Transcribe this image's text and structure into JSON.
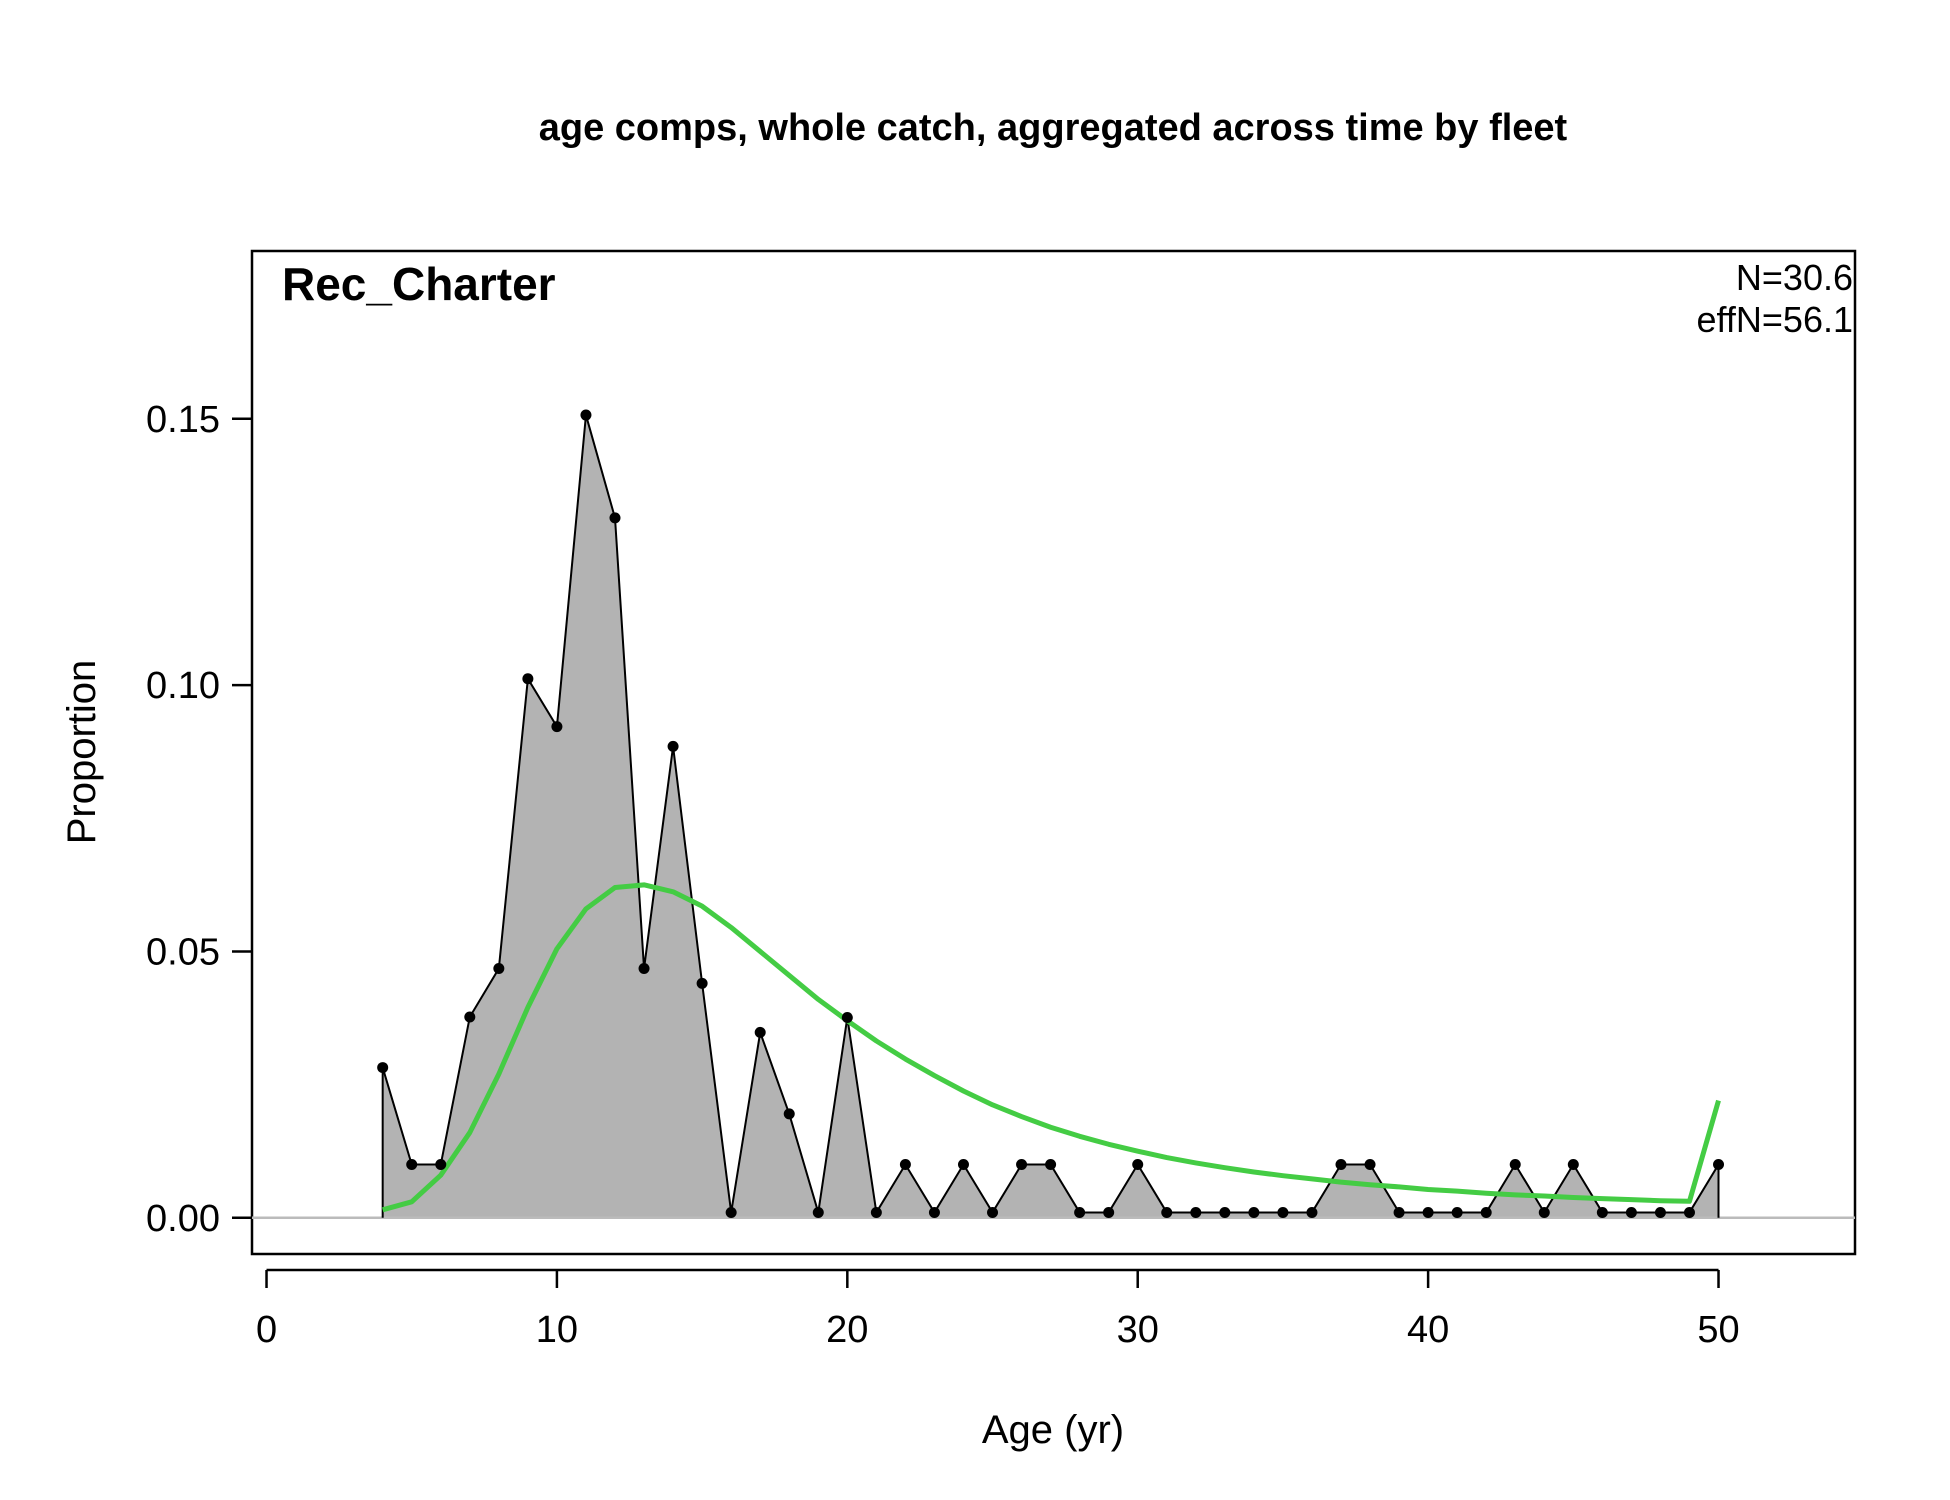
{
  "chart_data": {
    "type": "area",
    "title": "age comps, whole catch, aggregated across time by fleet",
    "xlabel": "Age (yr)",
    "ylabel": "Proportion",
    "fleet": "Rec_Charter",
    "n_label": "N=30.6",
    "effn_label": "effN=56.1",
    "xlim": [
      -0.5,
      54.7
    ],
    "ylim": [
      -0.0068,
      0.1815
    ],
    "x_ticks": [
      0,
      10,
      20,
      30,
      40,
      50
    ],
    "x_tick_labels": [
      "0",
      "10",
      "20",
      "30",
      "40",
      "50"
    ],
    "y_ticks": [
      0.0,
      0.05,
      0.1,
      0.15
    ],
    "y_tick_labels": [
      "0.00",
      "0.05",
      "0.10",
      "0.15"
    ],
    "colors": {
      "observed_fill": "#b3b3b3",
      "observed_line": "#000000",
      "expected_line": "#44cc44",
      "zero_line": "#bbbbbb"
    },
    "series": [
      {
        "name": "observed",
        "x": [
          4,
          5,
          6,
          7,
          8,
          9,
          10,
          11,
          12,
          13,
          14,
          15,
          16,
          17,
          18,
          19,
          20,
          21,
          22,
          23,
          24,
          25,
          26,
          27,
          28,
          29,
          30,
          31,
          32,
          33,
          34,
          35,
          36,
          37,
          38,
          39,
          40,
          41,
          42,
          43,
          44,
          45,
          46,
          47,
          48,
          49,
          50
        ],
        "values": [
          0.0282,
          0.01,
          0.01,
          0.0377,
          0.0468,
          0.1012,
          0.0922,
          0.1507,
          0.1314,
          0.0468,
          0.0885,
          0.044,
          0.001,
          0.0348,
          0.0195,
          0.001,
          0.0376,
          0.001,
          0.01,
          0.001,
          0.01,
          0.001,
          0.01,
          0.01,
          0.001,
          0.001,
          0.01,
          0.001,
          0.001,
          0.001,
          0.001,
          0.001,
          0.001,
          0.01,
          0.01,
          0.001,
          0.001,
          0.001,
          0.001,
          0.01,
          0.001,
          0.01,
          0.001,
          0.001,
          0.001,
          0.001,
          0.01
        ]
      },
      {
        "name": "expected",
        "x": [
          4,
          5,
          6,
          7,
          8,
          9,
          10,
          11,
          12,
          13,
          14,
          15,
          16,
          17,
          18,
          19,
          20,
          21,
          22,
          23,
          24,
          25,
          26,
          27,
          28,
          29,
          30,
          31,
          32,
          33,
          34,
          35,
          36,
          37,
          38,
          39,
          40,
          41,
          42,
          43,
          44,
          45,
          46,
          47,
          48,
          49,
          50
        ],
        "values": [
          0.0015,
          0.003,
          0.008,
          0.016,
          0.027,
          0.0395,
          0.0505,
          0.058,
          0.062,
          0.0625,
          0.0612,
          0.0585,
          0.0545,
          0.05,
          0.0455,
          0.041,
          0.037,
          0.0332,
          0.0298,
          0.0267,
          0.0238,
          0.0212,
          0.019,
          0.017,
          0.0153,
          0.0138,
          0.0125,
          0.0113,
          0.0103,
          0.0094,
          0.0086,
          0.0079,
          0.0073,
          0.0067,
          0.0062,
          0.0058,
          0.0053,
          0.005,
          0.0046,
          0.0043,
          0.0041,
          0.0038,
          0.0036,
          0.0034,
          0.0032,
          0.0031,
          0.022
        ]
      }
    ]
  }
}
